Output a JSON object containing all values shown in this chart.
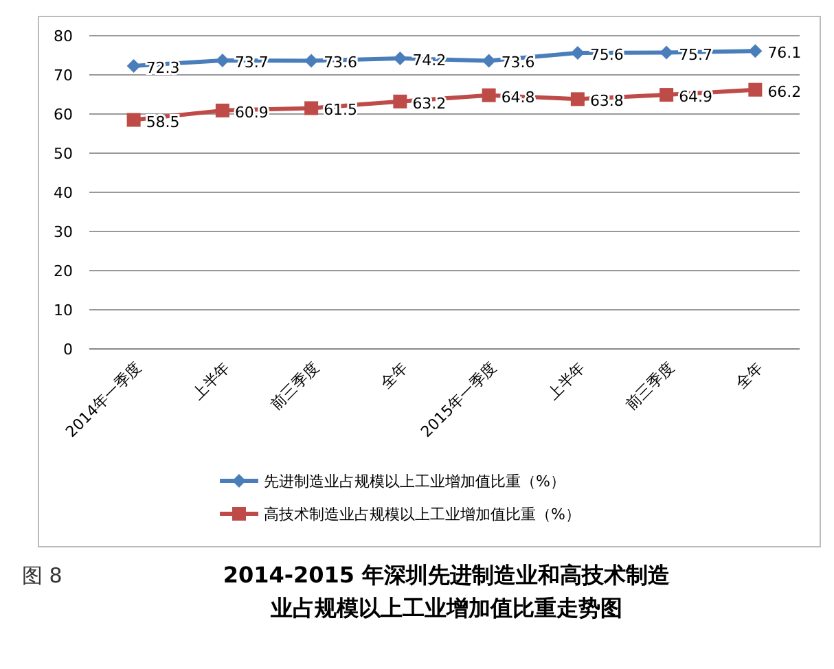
{
  "chart_data": {
    "type": "line",
    "title": "2014-2015 年深圳先进制造业和高技术制造业占规模以上工业增加值比重走势图",
    "annotations": [
      "图 8"
    ],
    "categories": [
      "2014年一季度",
      "上半年",
      "前三季度",
      "全年",
      "2015年一季度",
      "上半年",
      "前三季度",
      "全年"
    ],
    "series": [
      {
        "name": "先进制造业占规模以上工业增加值比重（%）",
        "color": "#4a7ebb",
        "marker": "diamond",
        "values": [
          72.3,
          73.7,
          73.6,
          74.2,
          73.6,
          75.6,
          75.7,
          76.1
        ]
      },
      {
        "name": "高技术制造业占规模以上工业增加值比重（%）",
        "color": "#be4b48",
        "marker": "square",
        "values": [
          58.5,
          60.9,
          61.5,
          63.2,
          64.8,
          63.8,
          64.9,
          66.2
        ]
      }
    ],
    "ylim": [
      0,
      80
    ],
    "yticks": [
      0,
      10,
      20,
      30,
      40,
      50,
      60,
      70,
      80
    ],
    "grid": "y",
    "legend": "bottom",
    "data_labels": true
  }
}
